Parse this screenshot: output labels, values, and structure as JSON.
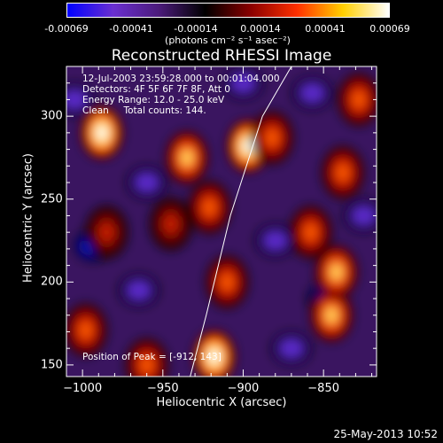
{
  "colorbar": {
    "ticks": [
      "-0.00069",
      "-0.00041",
      "-0.00014",
      "0.00014",
      "0.00041",
      "0.00069"
    ],
    "unit": "(photons cm⁻² s⁻¹ asec⁻²)",
    "colors": [
      "#0000ff",
      "#6a2fd0",
      "#4b1b7a",
      "#000000",
      "#8b0000",
      "#ff3000",
      "#ffd000",
      "#ffffff"
    ]
  },
  "chart_data": {
    "type": "heatmap",
    "title": "Reconstructed RHESSI Image",
    "xlabel": "Heliocentric X (arcsec)",
    "ylabel": "Heliocentric Y (arcsec)",
    "xlim": [
      -1010,
      -817
    ],
    "ylim": [
      143,
      330
    ],
    "xticks": [
      -1000,
      -950,
      -900,
      -850
    ],
    "yticks": [
      150,
      200,
      250,
      300
    ],
    "xtick_labels": [
      "−1000",
      "−950",
      "−900",
      "−850"
    ],
    "ytick_labels": [
      "150",
      "200",
      "250",
      "300"
    ],
    "limb_line": [
      [
        -933,
        143
      ],
      [
        -923,
        180
      ],
      [
        -908,
        240
      ],
      [
        -888,
        300
      ],
      [
        -870,
        330
      ]
    ],
    "bright_sources": [
      {
        "x": -918,
        "y": 155,
        "intensity": 1.0
      },
      {
        "x": -897,
        "y": 282,
        "intensity": 0.95
      },
      {
        "x": -988,
        "y": 290,
        "intensity": 0.9
      },
      {
        "x": -935,
        "y": 275,
        "intensity": 0.7
      },
      {
        "x": -921,
        "y": 245,
        "intensity": 0.55
      },
      {
        "x": -845,
        "y": 180,
        "intensity": 0.6
      },
      {
        "x": -842,
        "y": 206,
        "intensity": 0.65
      },
      {
        "x": -882,
        "y": 287,
        "intensity": 0.55
      },
      {
        "x": -838,
        "y": 266,
        "intensity": 0.55
      },
      {
        "x": -858,
        "y": 230,
        "intensity": 0.4
      },
      {
        "x": -998,
        "y": 171,
        "intensity": 0.45
      },
      {
        "x": -828,
        "y": 310,
        "intensity": 0.45
      },
      {
        "x": -910,
        "y": 200,
        "intensity": 0.4
      },
      {
        "x": -960,
        "y": 150,
        "intensity": 0.45
      },
      {
        "x": -945,
        "y": 235,
        "intensity": 0.35
      },
      {
        "x": -985,
        "y": 230,
        "intensity": 0.35
      }
    ],
    "dark_sources": [
      {
        "x": -993,
        "y": 222,
        "intensity": -0.9
      },
      {
        "x": -848,
        "y": 190,
        "intensity": -0.8
      },
      {
        "x": -857,
        "y": 314,
        "intensity": -0.5
      },
      {
        "x": -960,
        "y": 260,
        "intensity": -0.5
      },
      {
        "x": -1005,
        "y": 310,
        "intensity": -0.6
      },
      {
        "x": -965,
        "y": 195,
        "intensity": -0.55
      },
      {
        "x": -880,
        "y": 225,
        "intensity": -0.45
      },
      {
        "x": -870,
        "y": 160,
        "intensity": -0.45
      },
      {
        "x": -825,
        "y": 240,
        "intensity": -0.5
      },
      {
        "x": -900,
        "y": 320,
        "intensity": -0.4
      }
    ]
  },
  "info": {
    "line1": "12-Jul-2003 23:59:28.000 to 00:01:04.000",
    "line2": "Detectors: 4F 5F 6F 7F 8F, Att 0",
    "line3": "Energy Range: 12.0 - 25.0 keV",
    "line4": "Clean     Total counts: 144.",
    "peak": "Position of Peak = [-912, 143]"
  },
  "footer": "25-May-2013 10:52"
}
